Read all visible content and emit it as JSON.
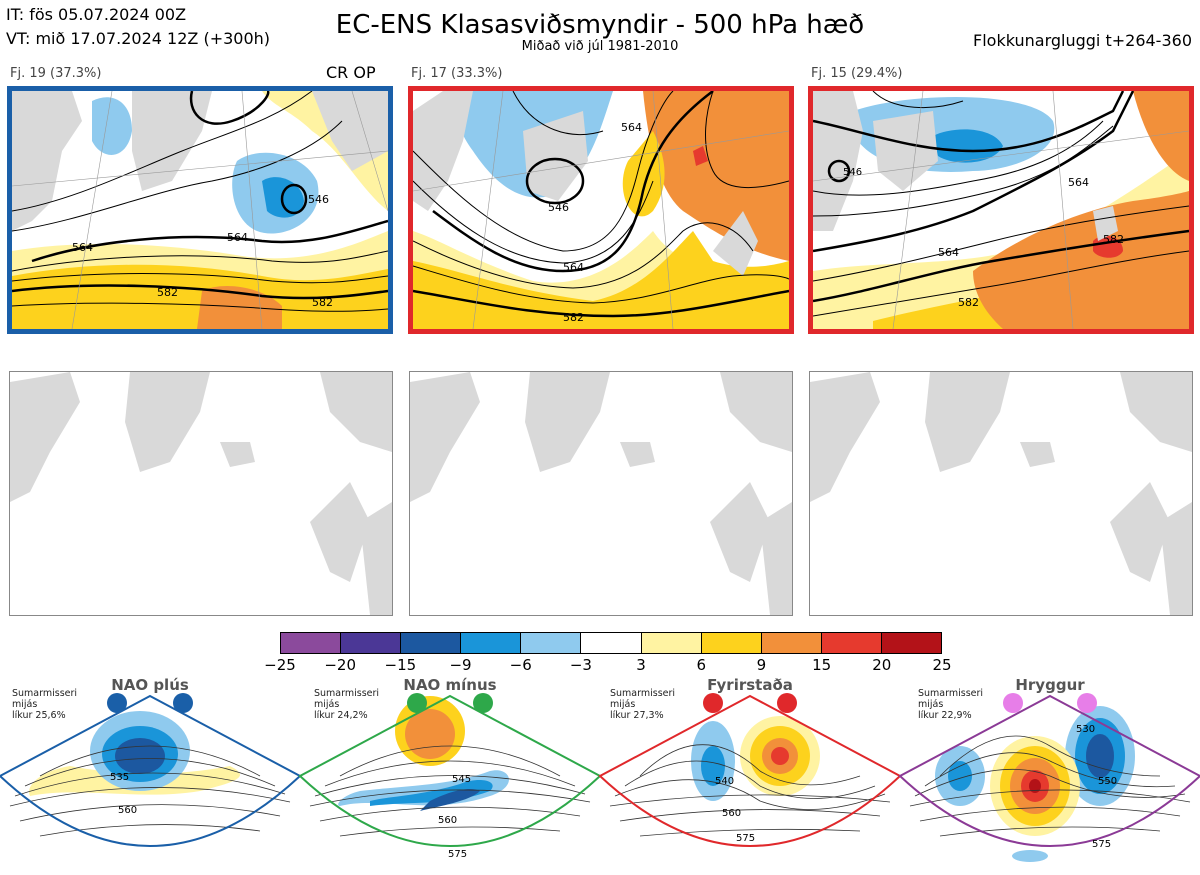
{
  "header": {
    "it_line": "IT: fös 05.07.2024 00Z",
    "vt_line": "VT: mið 17.07.2024 12Z  (+300h)",
    "title": "EC-ENS Klasasviðsmyndir - 500 hPa hæð",
    "subtitle": "Miðað við júl 1981-2010",
    "window": "Flokkunargluggi t+264-360"
  },
  "clusters": [
    {
      "label": "Fj. 19 (37.3%)",
      "tag": "CR OP",
      "border": "#1a5fa8",
      "contours": [
        "564",
        "582",
        "564",
        "582",
        "546"
      ]
    },
    {
      "label": "Fj. 17 (33.3%)",
      "tag": "",
      "border": "#e0282b",
      "contours": [
        "546",
        "564",
        "582",
        "564"
      ]
    },
    {
      "label": "Fj. 15 (29.4%)",
      "tag": "",
      "border": "#e0282b",
      "contours": [
        "546",
        "564",
        "582",
        "582",
        "564"
      ]
    }
  ],
  "colorbar": {
    "ticks": [
      "−25",
      "−20",
      "−15",
      "−9",
      "−6",
      "−3",
      "3",
      "6",
      "9",
      "15",
      "20",
      "25"
    ],
    "colors": [
      "#8b4a9c",
      "#4b3796",
      "#1c58a0",
      "#1a95d9",
      "#8fcaee",
      "#ffffff",
      "#fff3a2",
      "#fdd21d",
      "#f2903a",
      "#e63a2e",
      "#b31218"
    ]
  },
  "regimes": [
    {
      "name": "NAO plús",
      "note": [
        "Sumarmisseri",
        "mijás",
        "líkur 25,6%"
      ],
      "border": "#1a5fa8",
      "dot": "#1a5fa8",
      "labels": [
        "535",
        "560"
      ]
    },
    {
      "name": "NAO mínus",
      "note": [
        "Sumarmisseri",
        "mijás",
        "líkur 24,2%"
      ],
      "border": "#2ea84a",
      "dot": "#2ea84a",
      "labels": [
        "545",
        "560",
        "575"
      ]
    },
    {
      "name": "Fyrirstaða",
      "note": [
        "Sumarmisseri",
        "mijás",
        "líkur 27,3%"
      ],
      "border": "#e0282b",
      "dot": "#e0282b",
      "labels": [
        "540",
        "560",
        "575"
      ]
    },
    {
      "name": "Hryggur",
      "note": [
        "Sumarmisseri",
        "mijás",
        "líkur 22,9%"
      ],
      "border": "#8b3a96",
      "dot": "#e77ee8",
      "labels": [
        "530",
        "550",
        "575"
      ]
    }
  ],
  "chart_data": {
    "type": "heatmap",
    "title": "EC-ENS Klasasviðsmyndir - 500 hPa hæð",
    "subtitle": "Miðað við júl 1981-2010",
    "variable": "500 hPa geopotential height anomaly (dam) with height contours",
    "color_scale_ticks": [
      -25,
      -20,
      -15,
      -9,
      -6,
      -3,
      3,
      6,
      9,
      15,
      20,
      25
    ],
    "clusters": [
      {
        "name": "Fj. 19",
        "probability_pct": 37.3,
        "contains": "CR OP",
        "contour_labels": [
          546,
          564,
          582
        ]
      },
      {
        "name": "Fj. 17",
        "probability_pct": 33.3,
        "contour_labels": [
          546,
          564,
          582
        ]
      },
      {
        "name": "Fj. 15",
        "probability_pct": 29.4,
        "contour_labels": [
          546,
          564,
          582
        ]
      }
    ],
    "regimes": [
      {
        "name": "NAO plús",
        "probability_pct": 25.6
      },
      {
        "name": "NAO mínus",
        "probability_pct": 24.2
      },
      {
        "name": "Fyrirstaða",
        "probability_pct": 27.3
      },
      {
        "name": "Hryggur",
        "probability_pct": 22.9
      }
    ]
  }
}
